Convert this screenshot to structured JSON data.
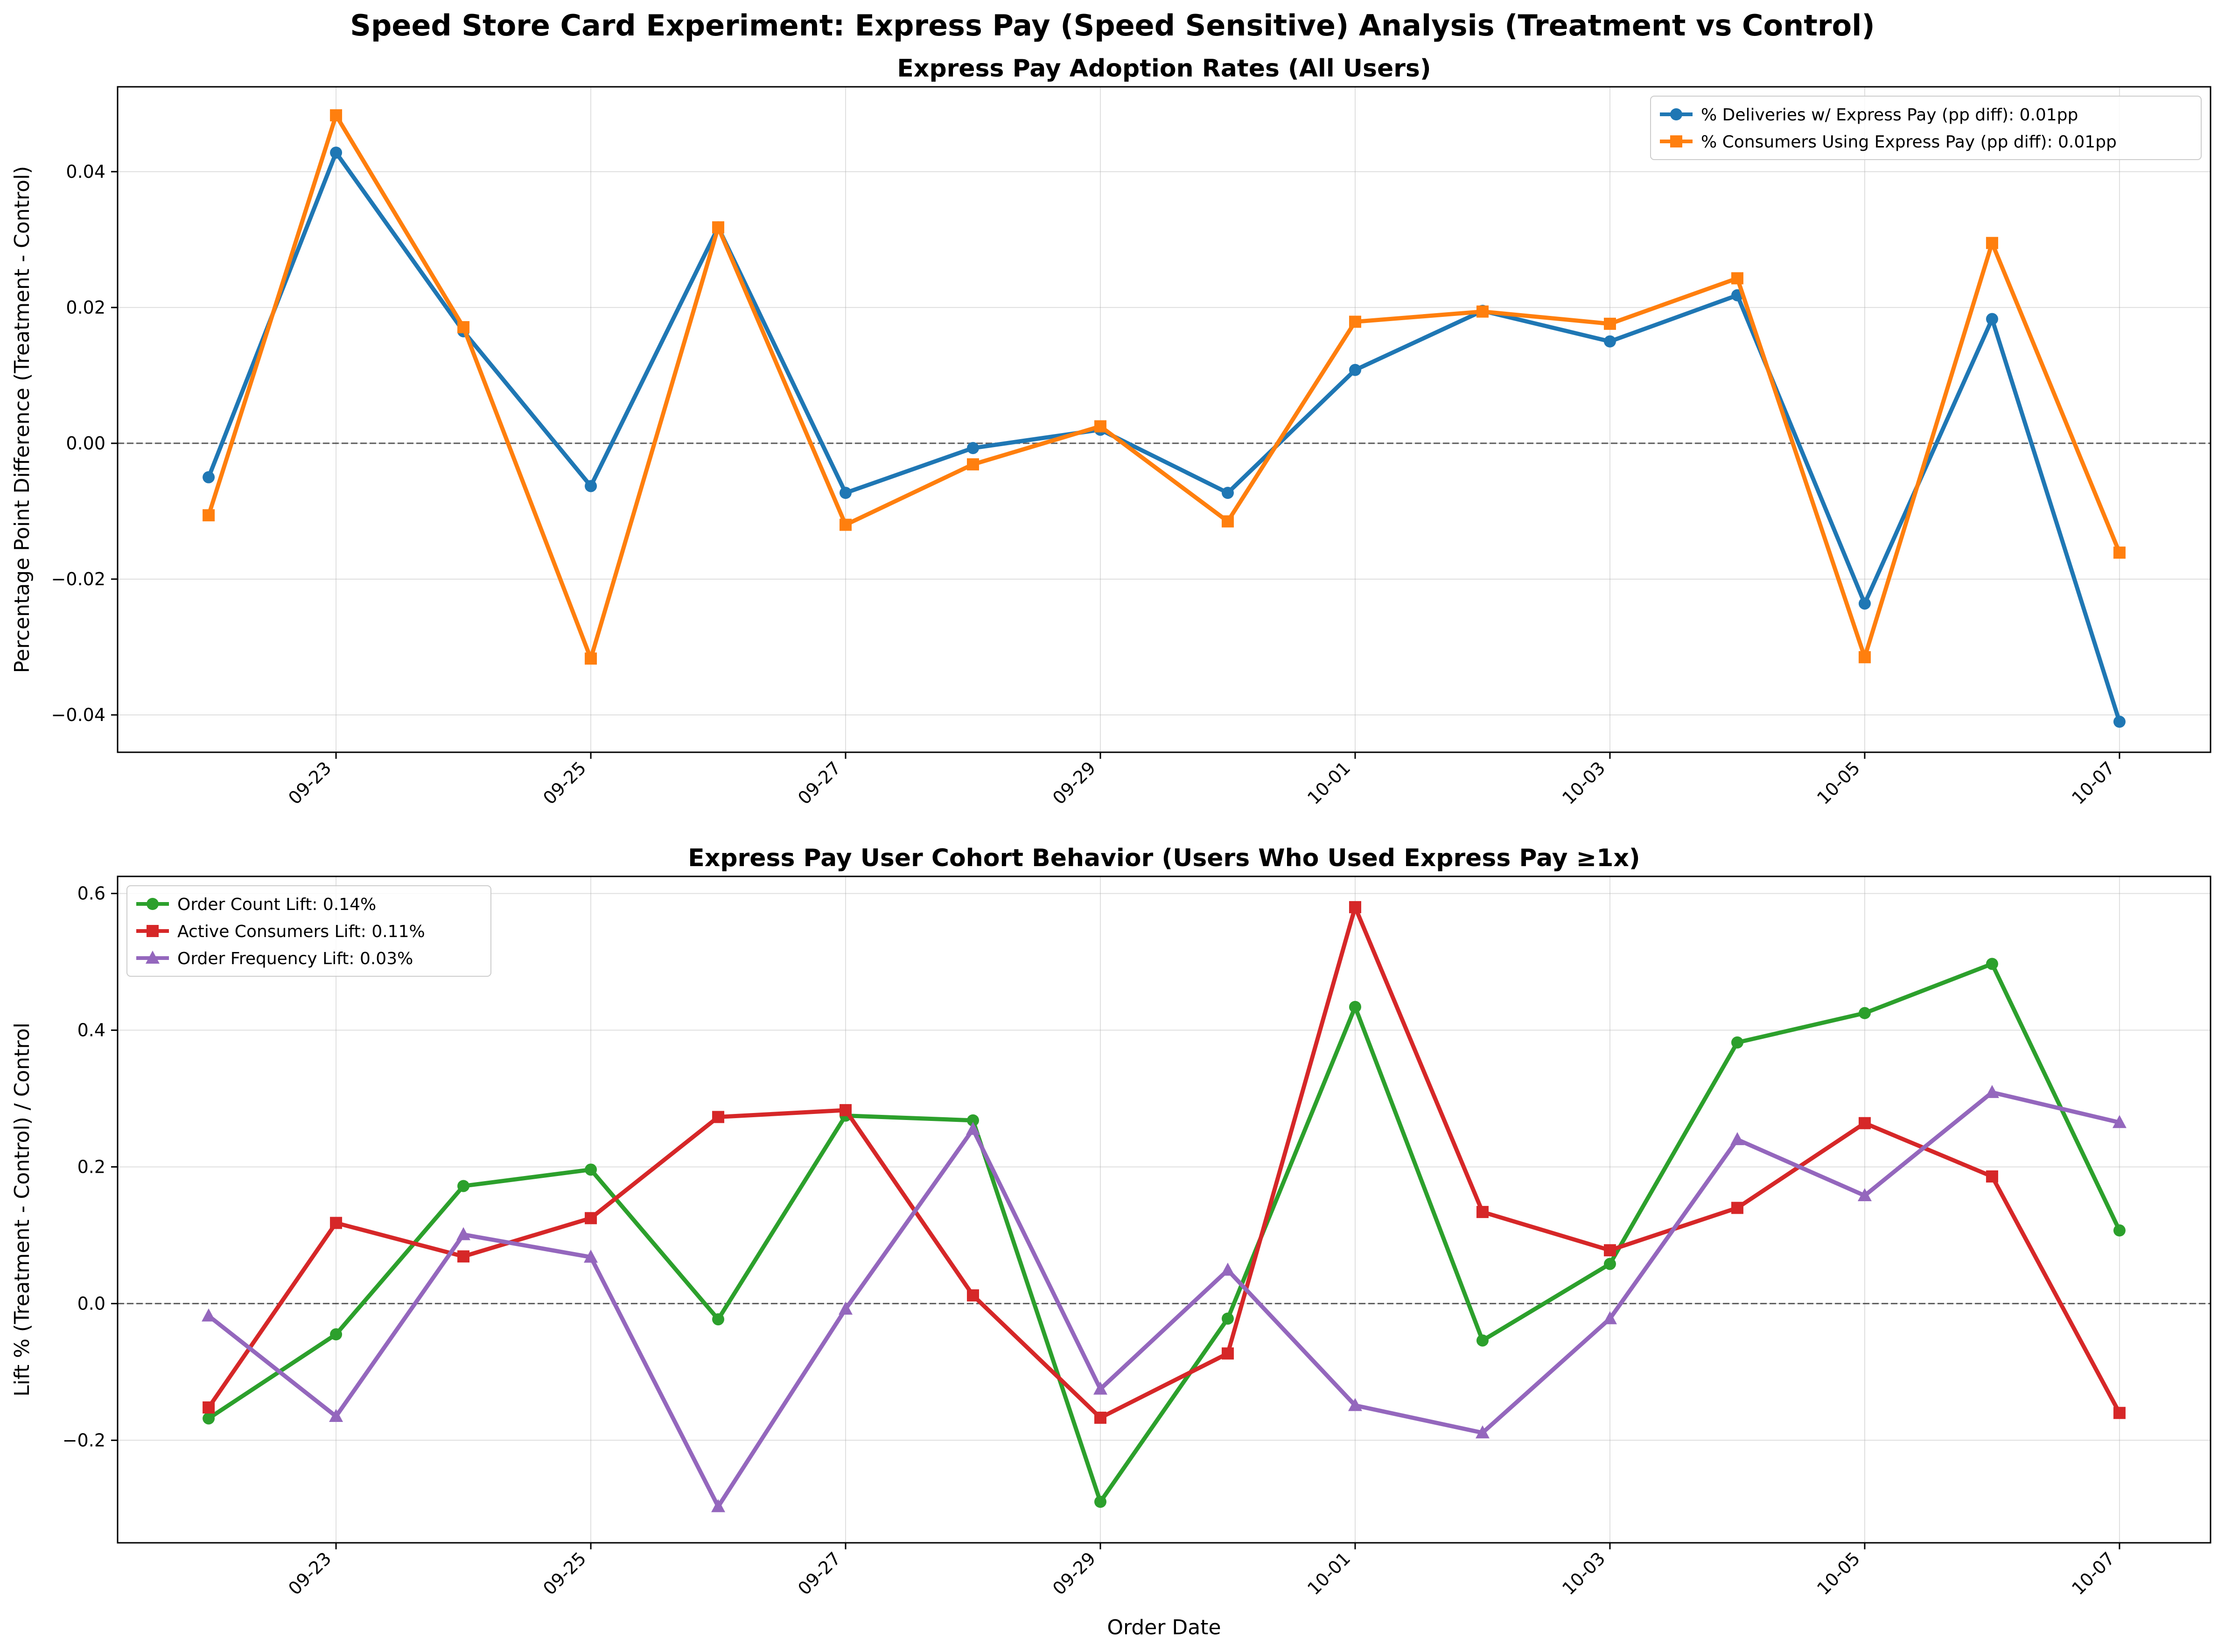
{
  "suptitle": "Speed Store Card Experiment: Express Pay (Speed Sensitive) Analysis (Treatment vs Control)",
  "chart_data": [
    {
      "type": "line",
      "title": "Express Pay Adoption Rates (All Users)",
      "xlabel": "",
      "ylabel": "Percentage Point Difference (Treatment - Control)",
      "x": [
        "09-22",
        "09-23",
        "09-24",
        "09-25",
        "09-26",
        "09-27",
        "09-28",
        "09-29",
        "09-30",
        "10-01",
        "10-02",
        "10-03",
        "10-04",
        "10-05",
        "10-06",
        "10-07"
      ],
      "xticks": [
        "09-23",
        "09-25",
        "09-27",
        "09-29",
        "10-01",
        "10-03",
        "10-05",
        "10-07"
      ],
      "ylim": [
        -0.0455,
        0.0525
      ],
      "yticks": [
        -0.04,
        -0.02,
        0.0,
        0.02,
        0.04
      ],
      "ytick_labels": [
        "−0.04",
        "−0.02",
        "0.00",
        "0.02",
        "0.04"
      ],
      "grid": true,
      "zero_line": true,
      "legend_position": "top-right",
      "series": [
        {
          "name": "% Deliveries w/ Express Pay (pp diff): 0.01pp",
          "color": "#1f77b4",
          "marker": "circle",
          "values": [
            -0.005,
            0.0428,
            0.0165,
            -0.0063,
            0.0318,
            -0.0073,
            -0.0007,
            0.002,
            -0.0073,
            0.0108,
            0.0195,
            0.015,
            0.0218,
            -0.0236,
            0.0183,
            -0.041
          ]
        },
        {
          "name": "% Consumers Using Express Pay (pp diff): 0.01pp",
          "color": "#ff7f0e",
          "marker": "square",
          "values": [
            -0.0106,
            0.0483,
            0.0171,
            -0.0317,
            0.0318,
            -0.012,
            -0.0031,
            0.0025,
            -0.0115,
            0.0179,
            0.0194,
            0.0176,
            0.0243,
            -0.0315,
            0.0295,
            -0.0161
          ]
        }
      ]
    },
    {
      "type": "line",
      "title": "Express Pay User Cohort Behavior (Users Who Used Express Pay ≥1x)",
      "xlabel": "Order Date",
      "ylabel": "Lift % (Treatment - Control) / Control",
      "x": [
        "09-22",
        "09-23",
        "09-24",
        "09-25",
        "09-26",
        "09-27",
        "09-28",
        "09-29",
        "09-30",
        "10-01",
        "10-02",
        "10-03",
        "10-04",
        "10-05",
        "10-06",
        "10-07"
      ],
      "xticks": [
        "09-23",
        "09-25",
        "09-27",
        "09-29",
        "10-01",
        "10-03",
        "10-05",
        "10-07"
      ],
      "ylim": [
        -0.35,
        0.625
      ],
      "yticks": [
        -0.2,
        0.0,
        0.2,
        0.4,
        0.6
      ],
      "ytick_labels": [
        "−0.2",
        "0.0",
        "0.2",
        "0.4",
        "0.6"
      ],
      "grid": true,
      "zero_line": true,
      "legend_position": "top-left",
      "series": [
        {
          "name": "Order Count Lift: 0.14%",
          "color": "#2ca02c",
          "marker": "circle",
          "values": [
            -0.168,
            -0.045,
            0.172,
            0.196,
            -0.023,
            0.275,
            0.268,
            -0.29,
            -0.022,
            0.434,
            -0.054,
            0.058,
            0.382,
            0.425,
            0.497,
            0.107
          ]
        },
        {
          "name": "Active Consumers Lift: 0.11%",
          "color": "#d62728",
          "marker": "square",
          "values": [
            -0.152,
            0.118,
            0.069,
            0.125,
            0.273,
            0.283,
            0.012,
            -0.167,
            -0.073,
            0.58,
            0.134,
            0.078,
            0.14,
            0.264,
            0.186,
            -0.16
          ]
        },
        {
          "name": "Order Frequency Lift: 0.03%",
          "color": "#9467bd",
          "marker": "triangle",
          "values": [
            -0.018,
            -0.165,
            0.101,
            0.068,
            -0.297,
            -0.008,
            0.255,
            -0.125,
            0.049,
            -0.149,
            -0.189,
            -0.022,
            0.24,
            0.158,
            0.309,
            0.265
          ]
        }
      ]
    }
  ]
}
